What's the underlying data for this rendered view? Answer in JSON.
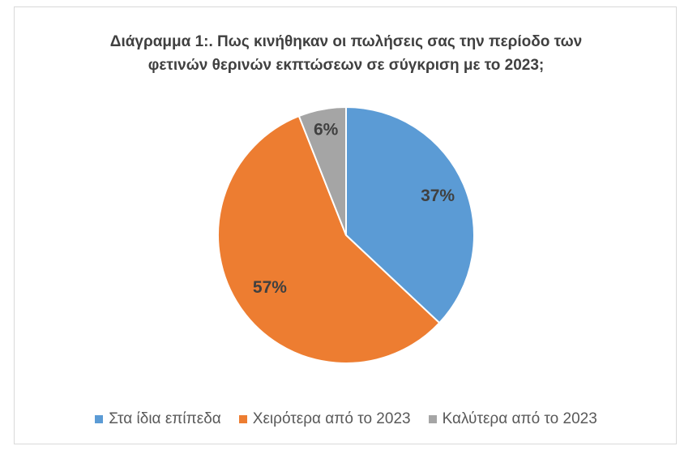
{
  "chart_data": {
    "type": "pie",
    "title_lines": [
      "Διάγραμμα 1:. Πως κινήθηκαν οι πωλήσεις σας την περίοδο των",
      "φετινών θερινών εκπτώσεων σε σύγκριση με το 2023;"
    ],
    "slices": [
      {
        "name": "Στα ίδια επίπεδα",
        "value": 37,
        "label": "37%",
        "color": "#5B9BD5"
      },
      {
        "name": "Χειρότερα από το 2023",
        "value": 57,
        "label": "57%",
        "color": "#ED7D31"
      },
      {
        "name": "Καλύτερα από το 2023",
        "value": 6,
        "label": "6%",
        "color": "#A5A5A5"
      }
    ],
    "legend_position": "bottom"
  }
}
